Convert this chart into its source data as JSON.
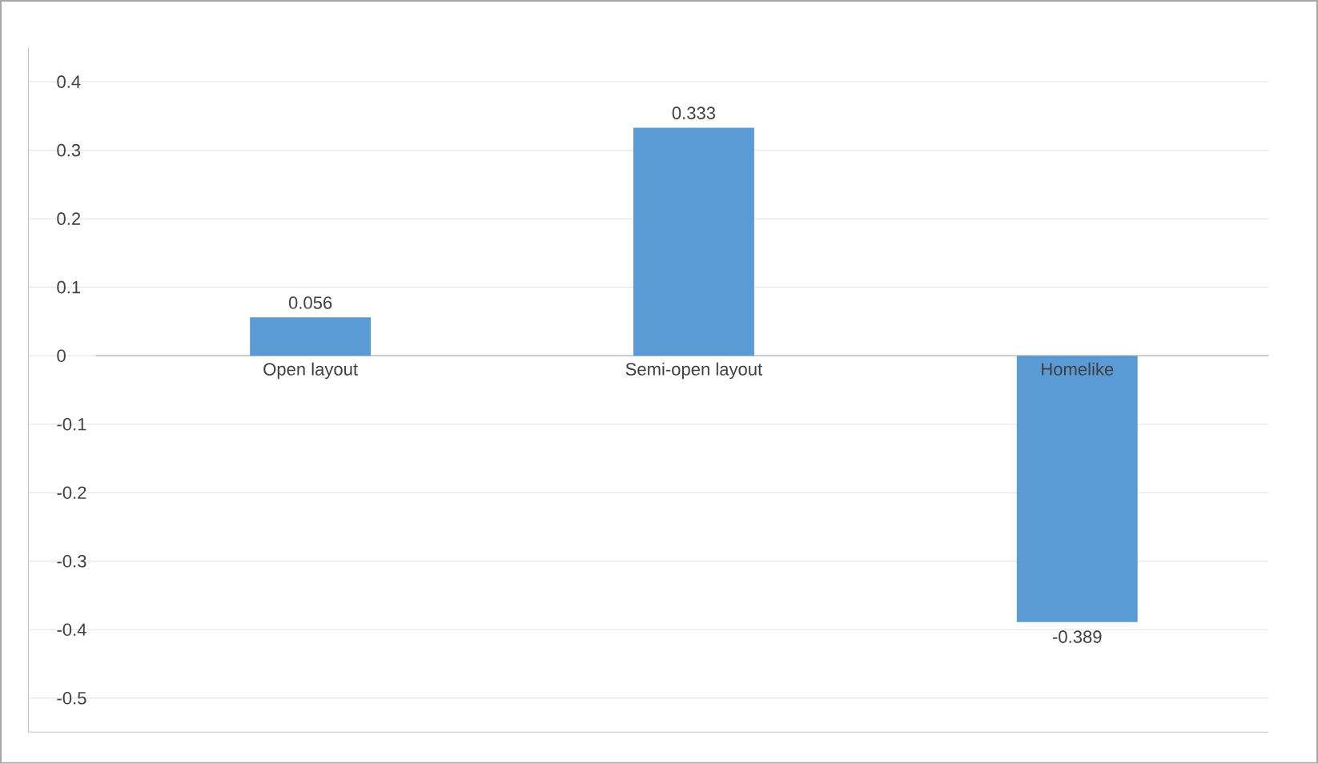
{
  "chart_data": {
    "type": "bar",
    "categories": [
      "Open layout",
      "Semi-open layout",
      "Homelike"
    ],
    "values": [
      0.056,
      0.333,
      -0.389
    ],
    "color": "#5b9bd5",
    "data_labels": true,
    "ylim": [
      -0.55,
      0.45
    ],
    "yticks": [
      -0.5,
      -0.4,
      -0.3,
      -0.2,
      -0.1,
      0,
      0.1,
      0.2,
      0.3,
      0.4
    ],
    "grid": "y"
  }
}
